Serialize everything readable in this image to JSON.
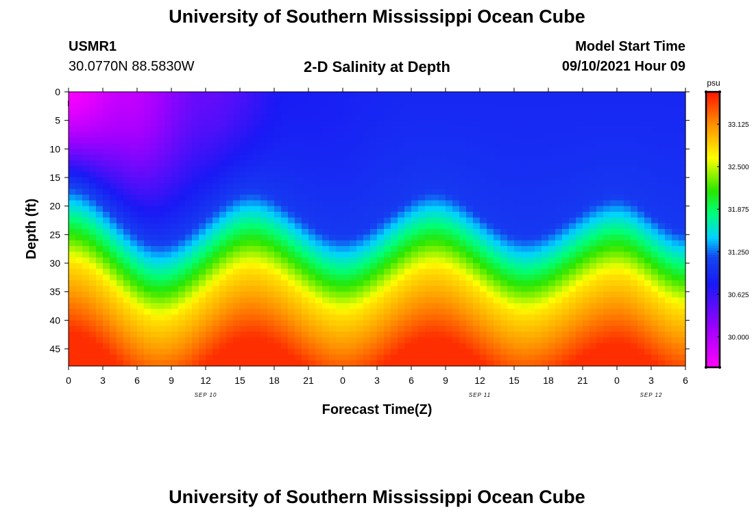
{
  "header": {
    "title": "University of Southern Mississippi Ocean Cube",
    "station_id": "USMR1",
    "location": "30.0770N  88.5830W",
    "plot_title": "2-D Salinity at Depth",
    "start_label": "Model Start Time",
    "start_value": "09/10/2021 Hour 09"
  },
  "footer": {
    "title": "University of Southern Mississippi Ocean Cube"
  },
  "chart_data": {
    "type": "heatmap",
    "title": "2-D Salinity at Depth",
    "xlabel": "Forecast Time(Z)",
    "ylabel": "Depth (ft)",
    "x_ticks": [
      "0",
      "3",
      "6",
      "9",
      "12",
      "15",
      "18",
      "21",
      "0",
      "3",
      "6",
      "9",
      "12",
      "15",
      "18",
      "21",
      "0",
      "3",
      "6"
    ],
    "x_tick_hours": [
      0,
      3,
      6,
      9,
      12,
      15,
      18,
      21,
      24,
      27,
      30,
      33,
      36,
      39,
      42,
      45,
      48,
      51,
      54
    ],
    "date_labels": [
      {
        "label": "SEP 10",
        "hour": 12
      },
      {
        "label": "SEP 11",
        "hour": 36
      },
      {
        "label": "SEP 12",
        "hour": 51
      }
    ],
    "y_ticks": [
      "0",
      "5",
      "10",
      "15",
      "20",
      "25",
      "30",
      "35",
      "40",
      "45"
    ],
    "y_tick_values": [
      0,
      5,
      10,
      15,
      20,
      25,
      30,
      35,
      40,
      45
    ],
    "xlim": [
      0,
      54
    ],
    "ylim": [
      0,
      48
    ],
    "colorbar": {
      "unit": "psu",
      "ticks": [
        "33.125",
        "32.500",
        "31.875",
        "31.250",
        "30.625",
        "30.000"
      ],
      "tick_values": [
        33.125,
        32.5,
        31.875,
        31.25,
        30.625,
        30.0
      ],
      "range": [
        29.55,
        33.6
      ]
    },
    "isohaline_depth_ft": {
      "description": "approximate depth of the green transition band (~32.0 psu) vs forecast hour",
      "hours": [
        0,
        8,
        16,
        24,
        32,
        40,
        48,
        54
      ],
      "depths": [
        22,
        32,
        23,
        31,
        23,
        31,
        24,
        30
      ]
    },
    "surface_salinity_psu": {
      "description": "approximate near-surface (0 ft) salinity vs forecast hour",
      "hours": [
        0,
        5,
        12,
        20,
        30,
        54
      ],
      "values": [
        29.6,
        29.9,
        30.4,
        30.8,
        30.9,
        30.9
      ]
    }
  }
}
